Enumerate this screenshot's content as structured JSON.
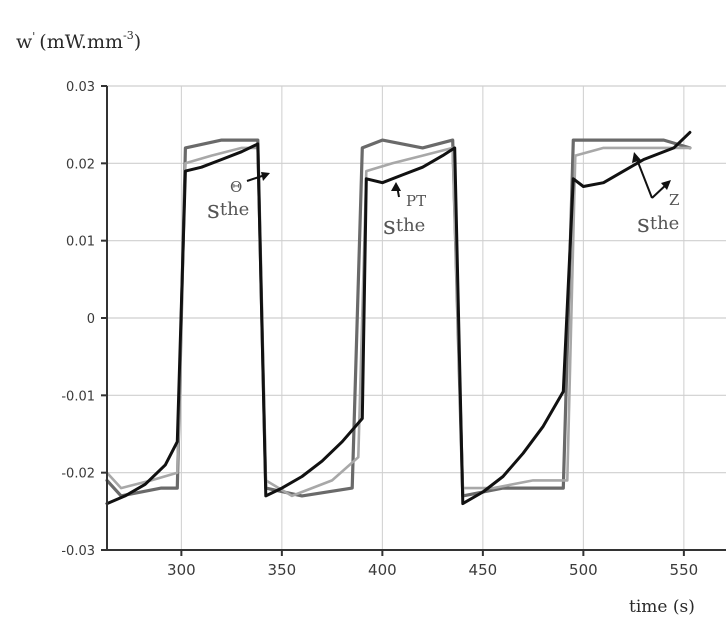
{
  "chart_data": {
    "type": "line",
    "xlabel": "time (s)",
    "ylabel": {
      "base": "w",
      "sup": "'",
      "unit_pre": "(mW.mm",
      "unit_sup": "-3",
      "unit_post": ")"
    },
    "xlim": [
      263,
      553
    ],
    "ylim": [
      -0.03,
      0.03
    ],
    "x_ticks": [
      "300",
      "350",
      "400",
      "450",
      "500",
      "550"
    ],
    "y_ticks": [
      "0.03",
      "0.02",
      "0.01",
      "0",
      "-0.01",
      "-0.02",
      "-0.03"
    ],
    "grid": true,
    "colors": {
      "axis": "#333333",
      "grid": "#cfcfcf",
      "measured": "#6a6a6a",
      "light": "#a8a8a8",
      "model": "#111111",
      "annotation": "#555555"
    },
    "series": [
      {
        "style": "measured",
        "x": [
          263,
          270,
          290,
          298,
          302,
          320,
          338,
          342,
          360,
          385,
          390,
          400,
          420,
          435,
          440,
          460,
          490,
          495,
          510,
          540,
          553
        ],
        "y": [
          -0.021,
          -0.023,
          -0.022,
          -0.022,
          0.022,
          0.023,
          0.023,
          -0.022,
          -0.023,
          -0.022,
          0.022,
          0.023,
          0.022,
          0.023,
          -0.023,
          -0.022,
          -0.022,
          0.023,
          0.023,
          0.023,
          0.022
        ]
      },
      {
        "style": "light",
        "x": [
          263,
          270,
          285,
          298,
          302,
          315,
          330,
          338,
          342,
          355,
          375,
          388,
          392,
          405,
          420,
          435,
          440,
          455,
          475,
          492,
          496,
          510,
          535,
          553
        ],
        "y": [
          -0.02,
          -0.022,
          -0.021,
          -0.02,
          0.02,
          0.021,
          0.022,
          0.022,
          -0.021,
          -0.023,
          -0.021,
          -0.018,
          0.019,
          0.02,
          0.021,
          0.022,
          -0.022,
          -0.022,
          -0.021,
          -0.021,
          0.021,
          0.022,
          0.022,
          0.022
        ]
      },
      {
        "style": "model",
        "x": [
          263,
          272,
          282,
          292,
          298,
          302,
          310,
          320,
          330,
          338,
          342,
          350,
          360,
          370,
          380,
          390,
          392,
          400,
          410,
          420,
          430,
          436,
          440,
          450,
          460,
          470,
          480,
          490,
          495,
          500,
          510,
          520,
          530,
          545,
          553
        ],
        "y": [
          -0.024,
          -0.023,
          -0.0215,
          -0.019,
          -0.016,
          0.019,
          0.0195,
          0.0205,
          0.0215,
          0.0225,
          -0.023,
          -0.022,
          -0.0205,
          -0.0185,
          -0.016,
          -0.013,
          0.018,
          0.0175,
          0.0185,
          0.0195,
          0.021,
          0.022,
          -0.024,
          -0.0225,
          -0.0205,
          -0.0175,
          -0.014,
          -0.0095,
          0.018,
          0.017,
          0.0175,
          0.019,
          0.0205,
          0.022,
          0.024
        ]
      }
    ],
    "annotations": [
      {
        "main": "s",
        "sub": "the",
        "sup": "Θ"
      },
      {
        "main": "s",
        "sub": "the",
        "sup": "PT"
      },
      {
        "main": "s",
        "sub": "the",
        "sup": "Z"
      }
    ]
  }
}
